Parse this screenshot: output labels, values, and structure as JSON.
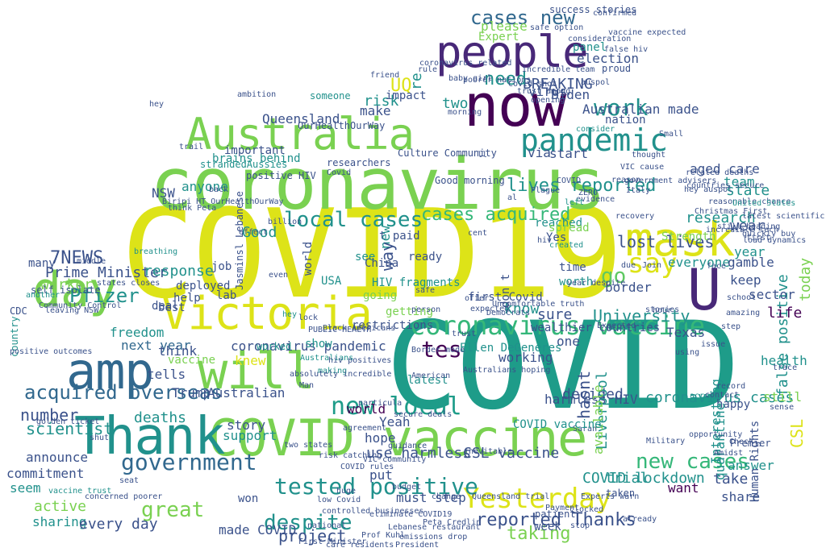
{
  "palette": {
    "yellow": "#dde318",
    "lime": "#7ad151",
    "green": "#5ec962",
    "teal": "#21918c",
    "tealdark": "#1e9c89",
    "blue": "#31688e",
    "indigo": "#3b528b",
    "purple": "#440154",
    "violet": "#482878",
    "sea": "#35b779"
  },
  "words": [
    {
      "text": "COVID19",
      "c": "yellow"
    },
    {
      "text": "COVID",
      "c": "tealdark"
    },
    {
      "text": "coronavirus",
      "c": "lime"
    },
    {
      "text": "now",
      "c": "purple"
    },
    {
      "text": "people",
      "c": "violet"
    },
    {
      "text": "Australia",
      "c": "lime"
    },
    {
      "text": "COVID vaccine",
      "c": "lime"
    },
    {
      "text": "Victoria",
      "c": "yellow"
    },
    {
      "text": "amp",
      "c": "blue"
    },
    {
      "text": "Thank",
      "c": "teal"
    },
    {
      "text": "day",
      "c": "lime"
    },
    {
      "text": "will",
      "c": "lime"
    },
    {
      "text": "mask",
      "c": "yellow"
    },
    {
      "text": "U",
      "c": "violet"
    },
    {
      "text": "coronavirus vaccine",
      "c": "sea"
    },
    {
      "text": "pandemic",
      "c": "teal"
    },
    {
      "text": "Yesterday",
      "c": "yellow"
    },
    {
      "text": "tested positive",
      "c": "teal"
    },
    {
      "text": "government",
      "c": "blue"
    },
    {
      "text": "new local",
      "c": "tealdark"
    },
    {
      "text": "say",
      "c": "yellow"
    },
    {
      "text": "work",
      "c": "teal"
    },
    {
      "text": "cases new",
      "c": "blue"
    },
    {
      "text": "tes",
      "c": "purple"
    },
    {
      "text": "new cases",
      "c": "sea"
    },
    {
      "text": "local cases",
      "c": "teal"
    },
    {
      "text": "cases acquired",
      "c": "sea"
    },
    {
      "text": "lives reported",
      "c": "teal"
    },
    {
      "text": "lost lives",
      "c": "indigo"
    },
    {
      "text": "acquired overseas",
      "c": "blue"
    },
    {
      "text": "Pfizer",
      "c": "teal"
    },
    {
      "text": "despite",
      "c": "teal"
    },
    {
      "text": "great",
      "c": "lime"
    },
    {
      "text": "BREAKING",
      "c": "indigo"
    },
    {
      "text": "Queensland",
      "c": "indigo"
    },
    {
      "text": "UQ",
      "c": "yellow"
    },
    {
      "text": "need",
      "c": "teal"
    },
    {
      "text": "Good",
      "c": "teal"
    },
    {
      "text": "7NEWS",
      "c": "indigo"
    },
    {
      "text": "Prime Minister",
      "c": "indigo"
    },
    {
      "text": "response",
      "c": "teal"
    },
    {
      "text": "worker",
      "c": "lime"
    },
    {
      "text": "freedom",
      "c": "teal"
    },
    {
      "text": "next year",
      "c": "blue"
    },
    {
      "text": "number",
      "c": "indigo"
    },
    {
      "text": "scientist",
      "c": "teal"
    },
    {
      "text": "deaths",
      "c": "teal"
    },
    {
      "text": "world",
      "c": "purple"
    },
    {
      "text": "know",
      "c": "teal"
    },
    {
      "text": "go",
      "c": "green"
    },
    {
      "text": "keep",
      "c": "indigo"
    },
    {
      "text": "wear",
      "c": "indigo"
    },
    {
      "text": "research",
      "c": "teal"
    },
    {
      "text": "team",
      "c": "teal"
    },
    {
      "text": "state",
      "c": "teal"
    },
    {
      "text": "year",
      "c": "teal"
    },
    {
      "text": "today",
      "c": "lime"
    },
    {
      "text": "CSL",
      "c": "yellow"
    },
    {
      "text": "false positive",
      "c": "teal"
    },
    {
      "text": "coronavirus cases",
      "c": "teal"
    },
    {
      "text": "harmless HIV",
      "c": "indigo"
    },
    {
      "text": "University",
      "c": "teal"
    },
    {
      "text": "sure",
      "c": "indigo"
    },
    {
      "text": "reported Thanks",
      "c": "indigo"
    },
    {
      "text": "project",
      "c": "indigo"
    },
    {
      "text": "made COVID",
      "c": "indigo"
    },
    {
      "text": "taking",
      "c": "lime"
    },
    {
      "text": "use harmless",
      "c": "indigo"
    },
    {
      "text": "CSL vaccine",
      "c": "indigo"
    },
    {
      "text": "COVID lockdown",
      "c": "teal"
    },
    {
      "text": "answer",
      "c": "teal"
    },
    {
      "text": "want",
      "c": "purple"
    },
    {
      "text": "share",
      "c": "indigo"
    },
    {
      "text": "take",
      "c": "indigo"
    },
    {
      "text": "everyone",
      "c": "teal"
    },
    {
      "text": "gamble",
      "c": "indigo"
    },
    {
      "text": "health",
      "c": "teal"
    },
    {
      "text": "still",
      "c": "lime"
    },
    {
      "text": "life",
      "c": "purple"
    },
    {
      "text": "Texas",
      "c": "indigo"
    },
    {
      "text": "sector",
      "c": "indigo"
    },
    {
      "text": "happy",
      "c": "indigo"
    },
    {
      "text": "Human Rights",
      "c": "indigo"
    },
    {
      "text": "decided",
      "c": "indigo"
    },
    {
      "text": "Liverpool",
      "c": "teal"
    },
    {
      "text": "quarantine",
      "c": "teal"
    },
    {
      "text": "Interesting",
      "c": "teal"
    },
    {
      "text": "trial",
      "c": "teal"
    },
    {
      "text": "available",
      "c": "lime"
    },
    {
      "text": "hasnt",
      "c": "indigo"
    },
    {
      "text": "working",
      "c": "indigo"
    },
    {
      "text": "hope",
      "c": "indigo"
    },
    {
      "text": "Yeah",
      "c": "indigo"
    },
    {
      "text": "put",
      "c": "indigo"
    },
    {
      "text": "must step",
      "c": "indigo"
    },
    {
      "text": "one",
      "c": "indigo"
    },
    {
      "text": "Trump",
      "c": "indigo"
    },
    {
      "text": "tells",
      "c": "indigo"
    },
    {
      "text": "think",
      "c": "indigo"
    },
    {
      "text": "coronavirus pandemic",
      "c": "indigo"
    },
    {
      "text": "knew",
      "c": "yellow"
    },
    {
      "text": "vaccine",
      "c": "lime"
    },
    {
      "text": "Australian",
      "c": "indigo"
    },
    {
      "text": "story",
      "c": "indigo"
    },
    {
      "text": "support",
      "c": "teal"
    },
    {
      "text": "announce",
      "c": "indigo"
    },
    {
      "text": "commitment",
      "c": "indigo"
    },
    {
      "text": "seem",
      "c": "teal"
    },
    {
      "text": "active",
      "c": "lime"
    },
    {
      "text": "sharing",
      "c": "teal"
    },
    {
      "text": "every day",
      "c": "indigo"
    },
    {
      "text": "deal",
      "c": "indigo"
    },
    {
      "text": "deployed",
      "c": "indigo"
    },
    {
      "text": "help",
      "c": "indigo"
    },
    {
      "text": "best",
      "c": "indigo"
    },
    {
      "text": "lab",
      "c": "indigo"
    },
    {
      "text": "job",
      "c": "indigo"
    },
    {
      "text": "many",
      "c": "indigo"
    },
    {
      "text": "brains behind",
      "c": "teal"
    },
    {
      "text": "NSW",
      "c": "indigo"
    },
    {
      "text": "anyone",
      "c": "teal"
    },
    {
      "text": "important",
      "c": "indigo"
    },
    {
      "text": "make",
      "c": "indigo"
    },
    {
      "text": "risk",
      "c": "teal"
    },
    {
      "text": "two",
      "c": "teal"
    },
    {
      "text": "impact",
      "c": "indigo"
    },
    {
      "text": "Biden",
      "c": "indigo"
    },
    {
      "text": "Australian made",
      "c": "indigo"
    },
    {
      "text": "nation",
      "c": "indigo"
    },
    {
      "text": "start",
      "c": "indigo"
    },
    {
      "text": "via",
      "c": "indigo"
    },
    {
      "text": "aged care",
      "c": "indigo"
    },
    {
      "text": "virus",
      "c": "indigo"
    },
    {
      "text": "Expert",
      "c": "lime"
    },
    {
      "text": "please",
      "c": "lime"
    },
    {
      "text": "re",
      "c": "teal"
    },
    {
      "text": "election",
      "c": "indigo"
    },
    {
      "text": "panel",
      "c": "teal"
    },
    {
      "text": "see",
      "c": "teal"
    },
    {
      "text": "ready",
      "c": "indigo"
    },
    {
      "text": "time",
      "c": "indigo"
    },
    {
      "text": "worth",
      "c": "teal"
    },
    {
      "text": "don t",
      "c": "indigo"
    },
    {
      "text": "t paid",
      "c": "indigo"
    },
    {
      "text": "reached",
      "c": "teal"
    },
    {
      "text": "spread",
      "c": "lime"
    },
    {
      "text": "Yes",
      "c": "indigo"
    },
    {
      "text": "going",
      "c": "lime"
    },
    {
      "text": "China",
      "c": "indigo"
    },
    {
      "text": "USA",
      "c": "teal"
    },
    {
      "text": "HIV fragments",
      "c": "teal"
    },
    {
      "text": "new",
      "c": "teal"
    },
    {
      "text": "way",
      "c": "indigo"
    },
    {
      "text": "getting",
      "c": "lime"
    },
    {
      "text": "border",
      "c": "indigo"
    },
    {
      "text": "Strength",
      "c": "lime"
    },
    {
      "text": "world",
      "c": "indigo"
    },
    {
      "text": "restrictions",
      "c": "indigo"
    },
    {
      "text": "wealthier countries",
      "c": "indigo"
    },
    {
      "text": "latest",
      "c": "teal"
    },
    {
      "text": "first Covid",
      "c": "indigo"
    },
    {
      "text": "Culture Community",
      "c": "indigo"
    },
    {
      "text": "researchers",
      "c": "indigo"
    },
    {
      "text": "Good morning",
      "c": "indigo"
    },
    {
      "text": "positive HIV",
      "c": "indigo"
    },
    {
      "text": "OurHealthOurWay",
      "c": "indigo"
    },
    {
      "text": "someone",
      "c": "teal"
    },
    {
      "text": "success stories",
      "c": "indigo"
    },
    {
      "text": "Covid shot",
      "c": "indigo"
    },
    {
      "text": "consider",
      "c": "teal"
    },
    {
      "text": "Jasminsl Lebanese",
      "c": "indigo"
    },
    {
      "text": "leaving NSW",
      "c": "indigo"
    },
    {
      "text": "think Peta",
      "c": "indigo"
    },
    {
      "text": "Biripi HT OurHealthOurWay",
      "c": "indigo"
    },
    {
      "text": "Community Control",
      "c": "indigo"
    },
    {
      "text": "two states",
      "c": "indigo"
    },
    {
      "text": "PUBLIC HEALTH",
      "c": "indigo"
    },
    {
      "text": "Black Americans",
      "c": "indigo"
    },
    {
      "text": "making",
      "c": "teal"
    },
    {
      "text": "absolutely incredible",
      "c": "indigo"
    },
    {
      "text": "Man",
      "c": "indigo"
    },
    {
      "text": "show",
      "c": "teal"
    },
    {
      "text": "worked",
      "c": "teal"
    },
    {
      "text": "Australians",
      "c": "teal"
    },
    {
      "text": "hey",
      "c": "teal"
    },
    {
      "text": "won",
      "c": "indigo"
    },
    {
      "text": "Military",
      "c": "indigo"
    },
    {
      "text": "Premier",
      "c": "indigo"
    },
    {
      "text": "patient",
      "c": "indigo"
    },
    {
      "text": "week",
      "c": "indigo"
    },
    {
      "text": "Sarah",
      "c": "indigo"
    },
    {
      "text": "taken",
      "c": "indigo"
    },
    {
      "text": "Peta Credlin",
      "c": "indigo"
    },
    {
      "text": "Queensland trial",
      "c": "indigo"
    },
    {
      "text": "eliminate COVID19",
      "c": "indigo"
    },
    {
      "text": "Experts warn",
      "c": "indigo"
    },
    {
      "text": "COVID vaccine",
      "c": "teal"
    },
    {
      "text": "Ellen DeGeneres",
      "c": "teal"
    },
    {
      "text": "CDC",
      "c": "indigo"
    },
    {
      "text": "middle",
      "c": "indigo"
    },
    {
      "text": "breathing",
      "c": "teal"
    },
    {
      "text": "states closes",
      "c": "indigo"
    },
    {
      "text": "self isolate",
      "c": "indigo"
    },
    {
      "text": "another",
      "c": "teal"
    },
    {
      "text": "country",
      "c": "teal"
    },
    {
      "text": "positive outcomes",
      "c": "indigo"
    },
    {
      "text": "golden ticket",
      "c": "indigo"
    },
    {
      "text": "concerned poorer",
      "c": "indigo"
    },
    {
      "text": "vaccine trust",
      "c": "teal"
    },
    {
      "text": "ambition",
      "c": "indigo"
    },
    {
      "text": "strandedAussies",
      "c": "teal"
    },
    {
      "text": "billion",
      "c": "indigo"
    },
    {
      "text": "Covid",
      "c": "indigo"
    },
    {
      "text": "Small",
      "c": "indigo"
    },
    {
      "text": "face",
      "c": "indigo"
    },
    {
      "text": "Join",
      "c": "indigo"
    },
    {
      "text": "due",
      "c": "indigo"
    },
    {
      "text": "hour",
      "c": "indigo"
    },
    {
      "text": "issue",
      "c": "indigo"
    },
    {
      "text": "step",
      "c": "indigo"
    },
    {
      "text": "amazing",
      "c": "indigo"
    },
    {
      "text": "trace",
      "c": "indigo"
    },
    {
      "text": "sense",
      "c": "indigo"
    },
    {
      "text": "school",
      "c": "indigo"
    },
    {
      "text": "trust among",
      "c": "indigo"
    },
    {
      "text": "auspol",
      "c": "indigo"
    },
    {
      "text": "poorer nations",
      "c": "indigo"
    },
    {
      "text": "opening",
      "c": "indigo"
    },
    {
      "text": "baby girl",
      "c": "indigo"
    },
    {
      "text": "friend",
      "c": "indigo"
    },
    {
      "text": "proud",
      "c": "indigo"
    },
    {
      "text": "false hiv",
      "c": "indigo"
    },
    {
      "text": "vaccine expected",
      "c": "indigo"
    },
    {
      "text": "safe option",
      "c": "indigo"
    },
    {
      "text": "confirmed",
      "c": "indigo"
    },
    {
      "text": "consideration",
      "c": "indigo"
    },
    {
      "text": "incredible team",
      "c": "indigo"
    },
    {
      "text": "coronavirus related",
      "c": "indigo"
    },
    {
      "text": "related deaths",
      "c": "indigo"
    },
    {
      "text": "countries secure",
      "c": "indigo"
    },
    {
      "text": "reasonable chance",
      "c": "indigo"
    },
    {
      "text": "United States",
      "c": "teal"
    },
    {
      "text": "still heading",
      "c": "indigo"
    },
    {
      "text": "load dynamics",
      "c": "indigo"
    },
    {
      "text": "Christmas First",
      "c": "indigo"
    },
    {
      "text": "quickly buy",
      "c": "indigo"
    },
    {
      "text": "first",
      "c": "indigo"
    },
    {
      "text": "hey auspol",
      "c": "indigo"
    },
    {
      "text": "latest scientific",
      "c": "indigo"
    },
    {
      "text": "incredible tech",
      "c": "indigo"
    },
    {
      "text": "VIC cause",
      "c": "indigo"
    },
    {
      "text": "thought",
      "c": "indigo"
    },
    {
      "text": "reason",
      "c": "indigo"
    },
    {
      "text": "Italy",
      "c": "indigo"
    },
    {
      "text": "government advisers",
      "c": "indigo"
    },
    {
      "text": "COVID",
      "c": "indigo"
    },
    {
      "text": "recovery",
      "c": "indigo"
    },
    {
      "text": "ZERO",
      "c": "indigo"
    },
    {
      "text": "Plague",
      "c": "indigo"
    },
    {
      "text": "evidence",
      "c": "indigo"
    },
    {
      "text": "cent",
      "c": "indigo"
    },
    {
      "text": "left",
      "c": "teal"
    },
    {
      "text": "created",
      "c": "teal"
    },
    {
      "text": "Uncomfortable truth",
      "c": "indigo"
    },
    {
      "text": "Democrats",
      "c": "indigo"
    },
    {
      "text": "expected",
      "c": "indigo"
    },
    {
      "text": "offer",
      "c": "indigo"
    },
    {
      "text": "trust",
      "c": "indigo"
    },
    {
      "text": "safe",
      "c": "indigo"
    },
    {
      "text": "person",
      "c": "indigo"
    },
    {
      "text": "Border mode",
      "c": "indigo"
    },
    {
      "text": "Australians hoping",
      "c": "indigo"
    },
    {
      "text": "American",
      "c": "indigo"
    },
    {
      "text": "agreement",
      "c": "indigo"
    },
    {
      "text": "secure deals",
      "c": "indigo"
    },
    {
      "text": "budget",
      "c": "indigo"
    },
    {
      "text": "VIC community",
      "c": "indigo"
    },
    {
      "text": "COVID rules",
      "c": "indigo"
    },
    {
      "text": "huge",
      "c": "indigo"
    },
    {
      "text": "risk catching",
      "c": "indigo"
    },
    {
      "text": "low Covid",
      "c": "indigo"
    },
    {
      "text": "controlled businesses",
      "c": "indigo"
    },
    {
      "text": "national",
      "c": "indigo"
    },
    {
      "text": "First Minister",
      "c": "indigo"
    },
    {
      "text": "care residents",
      "c": "indigo"
    },
    {
      "text": "Prof Kuhl",
      "c": "indigo"
    },
    {
      "text": "emissions drop",
      "c": "indigo"
    },
    {
      "text": "Lebanese restaurant",
      "c": "indigo"
    },
    {
      "text": "President",
      "c": "indigo"
    },
    {
      "text": "change",
      "c": "indigo"
    },
    {
      "text": "inevitable",
      "c": "indigo"
    },
    {
      "text": "Payment",
      "c": "indigo"
    },
    {
      "text": "clocked",
      "c": "indigo"
    },
    {
      "text": "stop",
      "c": "indigo"
    },
    {
      "text": "already",
      "c": "indigo"
    },
    {
      "text": "opportunity",
      "c": "indigo"
    },
    {
      "text": "across",
      "c": "teal"
    },
    {
      "text": "record",
      "c": "indigo"
    },
    {
      "text": "Amidst",
      "c": "indigo"
    },
    {
      "text": "Check",
      "c": "indigo"
    },
    {
      "text": "stories",
      "c": "indigo"
    },
    {
      "text": "using",
      "c": "indigo"
    },
    {
      "text": "contact",
      "c": "indigo"
    },
    {
      "text": "shut",
      "c": "indigo"
    },
    {
      "text": "seat",
      "c": "indigo"
    },
    {
      "text": "hey",
      "c": "indigo"
    },
    {
      "text": "trail",
      "c": "indigo"
    },
    {
      "text": "back",
      "c": "indigo"
    },
    {
      "text": "effect",
      "c": "indigo"
    },
    {
      "text": "even",
      "c": "indigo"
    },
    {
      "text": "lock",
      "c": "indigo"
    },
    {
      "text": "hiv positives",
      "c": "indigo"
    },
    {
      "text": "particula",
      "c": "indigo"
    },
    {
      "text": "guidance",
      "c": "indigo"
    },
    {
      "text": "rule",
      "c": "indigo"
    },
    {
      "text": "morning",
      "c": "indigo"
    },
    {
      "text": "ll",
      "c": "indigo"
    },
    {
      "text": "al",
      "c": "indigo"
    },
    {
      "text": "hiv",
      "c": "indigo"
    },
    {
      "text": "year despite",
      "c": "indigo"
    },
    {
      "text": "Expected",
      "c": "indigo"
    }
  ]
}
